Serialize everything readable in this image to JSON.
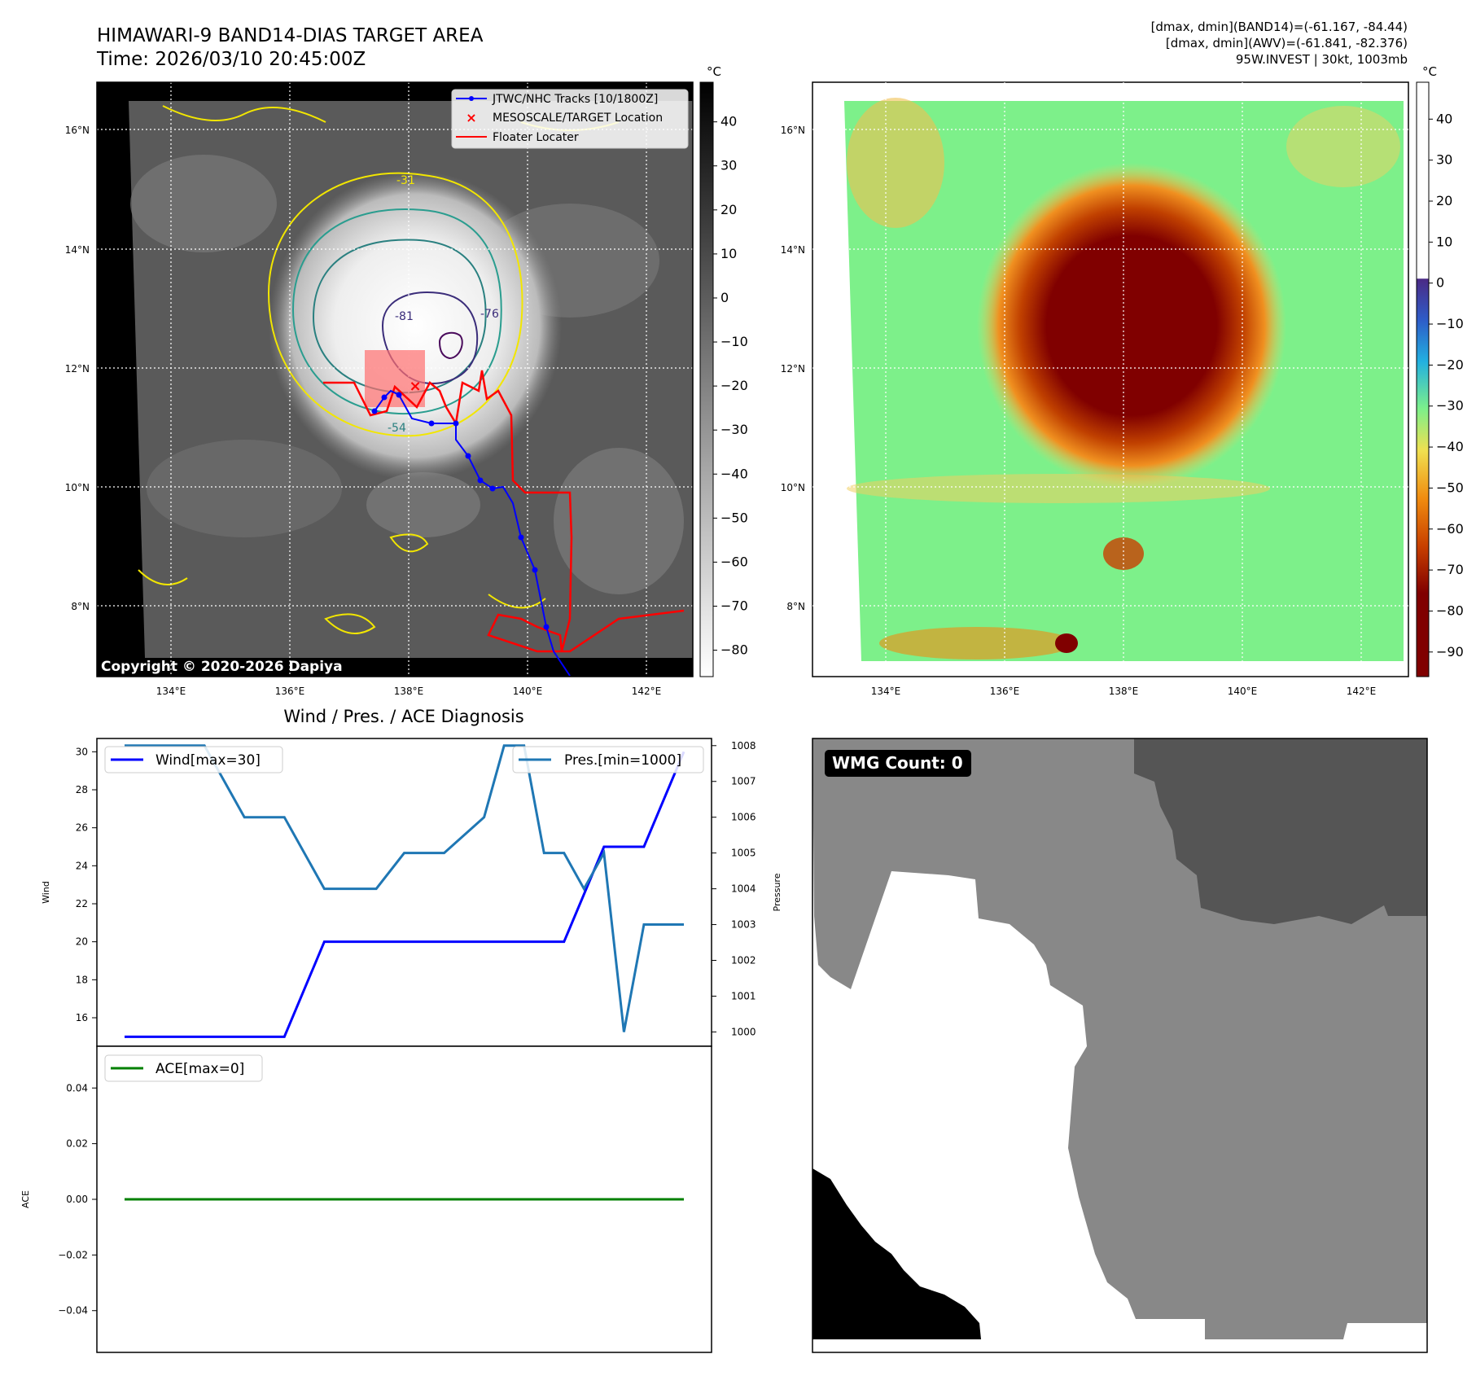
{
  "header": {
    "title_line1": "HIMAWARI-9 BAND14-DIAS TARGET AREA",
    "title_line2": "Time: 2026/03/10 20:45:00Z",
    "info_line1": "[dmax, dmin](BAND14)=(-61.167, -84.44)",
    "info_line2": "[dmax, dmin](AWV)=(-61.841, -82.376)",
    "info_line3": "95W.INVEST | 30kt, 1003mb"
  },
  "map_axes": {
    "lat_ticks": [
      "16°N",
      "14°N",
      "12°N",
      "10°N",
      "8°N"
    ],
    "lon_ticks": [
      "134°E",
      "136°E",
      "138°E",
      "140°E",
      "142°E"
    ]
  },
  "ir_map": {
    "legend": [
      "JTWC/NHC Tracks [10/1800Z]",
      "MESOSCALE/TARGET Location",
      "Floater Locater"
    ],
    "contour_labels": [
      "-31",
      "-81",
      "-76",
      "-54"
    ],
    "copyright": "Copyright © 2020-2026 Dapiya",
    "colorbar_unit": "°C",
    "colorbar_ticks": [
      "40",
      "30",
      "20",
      "10",
      "0",
      "−10",
      "−20",
      "−30",
      "−40",
      "−50",
      "−60",
      "−70",
      "−80"
    ]
  },
  "awv_map": {
    "colorbar_unit": "°C",
    "colorbar_ticks": [
      "40",
      "30",
      "20",
      "10",
      "0",
      "−10",
      "−20",
      "−30",
      "−40",
      "−50",
      "−60",
      "−70",
      "−80",
      "−90"
    ]
  },
  "diag": {
    "title": "Wind / Pres. / ACE Diagnosis",
    "wind_ylabel": "Wind",
    "pres_ylabel": "Pressure",
    "ace_ylabel": "ACE",
    "wind_legend": "Wind[max=30]",
    "pres_legend": "Pres.[min=1000]",
    "ace_legend": "ACE[max=0]"
  },
  "wmg": {
    "label": "WMG Count: 0"
  },
  "colors": {
    "wind": "#0000ff",
    "pressure": "#1f77b4",
    "ace": "#008000",
    "track": "#0000ff",
    "floater": "#ff0000",
    "target": "#ff0000"
  },
  "chart_data": [
    {
      "type": "line",
      "title": "Wind / Pres. / ACE Diagnosis",
      "xlabel": "",
      "ylabel": "Wind",
      "ylim": [
        14.5,
        30.7
      ],
      "yticks": [
        16,
        18,
        20,
        22,
        24,
        26,
        28,
        30
      ],
      "x": [
        0,
        1,
        2,
        3,
        4,
        5,
        6,
        7,
        8,
        9,
        10,
        11,
        12,
        13,
        14
      ],
      "series": [
        {
          "name": "Wind[max=30]",
          "axis": "left",
          "values": [
            15,
            15,
            15,
            15,
            15,
            20,
            20,
            20,
            20,
            20,
            20,
            20,
            25,
            25,
            30
          ]
        },
        {
          "name": "Pres.[min=1000]",
          "axis": "right",
          "ylim": [
            999.6,
            1008.2
          ],
          "yticks": [
            1000,
            1001,
            1002,
            1003,
            1004,
            1005,
            1006,
            1007,
            1008
          ],
          "x": [
            0,
            1,
            2,
            3,
            3.5,
            4,
            5,
            5.6,
            6.3,
            7,
            7.5,
            8,
            9,
            9.5,
            10,
            10.5,
            11,
            11.5,
            12,
            12.5,
            13,
            13.5,
            14
          ],
          "values": [
            1008,
            1008,
            1008,
            1006,
            1006,
            1006,
            1004,
            1004,
            1004,
            1005,
            1005,
            1005,
            1006,
            1008,
            1008,
            1005,
            1005,
            1004,
            1005,
            1000,
            1003,
            1003,
            1003
          ]
        }
      ],
      "grid": false,
      "legend": "top-left / top-right"
    },
    {
      "type": "line",
      "ylabel": "ACE",
      "ylim": [
        -0.055,
        0.055
      ],
      "yticks": [
        0.04,
        0.02,
        0.0,
        -0.02,
        -0.04
      ],
      "ytick_labels": [
        "0.04",
        "0.02",
        "0.00",
        "−0.02",
        "−0.04"
      ],
      "series": [
        {
          "name": "ACE[max=0]",
          "values": [
            0,
            0,
            0,
            0,
            0,
            0,
            0,
            0,
            0,
            0,
            0,
            0,
            0,
            0,
            0
          ]
        }
      ],
      "legend": "top-left"
    }
  ]
}
